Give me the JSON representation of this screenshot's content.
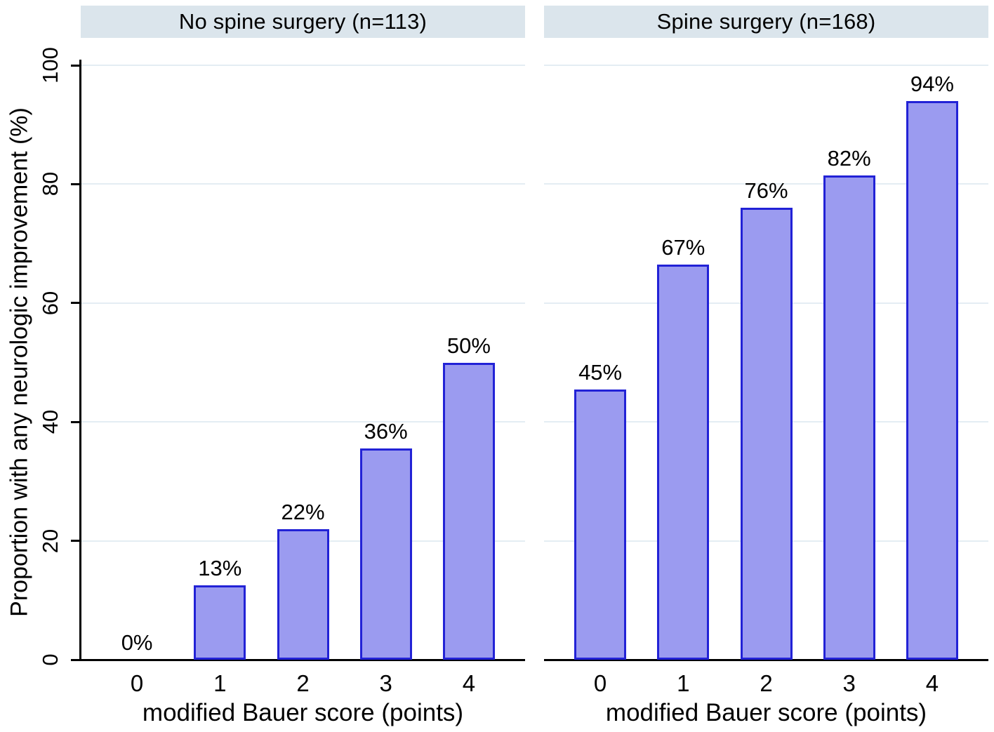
{
  "figure": {
    "background": "#ffffff"
  },
  "y_axis": {
    "title": "Proportion with any neurologic improvement (%)",
    "tick_values": [
      0,
      20,
      40,
      60,
      80,
      100
    ],
    "tick_labels": [
      "0",
      "20",
      "40",
      "60",
      "80",
      "100"
    ]
  },
  "chart_data": [
    {
      "type": "bar",
      "title": "No spine surgery (n=113)",
      "xlabel": "modified Bauer score (points)",
      "ylabel": "Proportion with any neurologic improvement (%)",
      "categories": [
        "0",
        "1",
        "2",
        "3",
        "4"
      ],
      "values": [
        0,
        13,
        22,
        36,
        50
      ],
      "value_labels": [
        "0%",
        "13%",
        "22%",
        "36%",
        "50%"
      ],
      "bar_heights_pct": [
        0,
        12.5,
        22,
        35.5,
        50
      ],
      "ylim": [
        0,
        100
      ],
      "grid": "horizontal",
      "legend": "none"
    },
    {
      "type": "bar",
      "title": "Spine surgery (n=168)",
      "xlabel": "modified Bauer score (points)",
      "ylabel": "Proportion with any neurologic improvement (%)",
      "categories": [
        "0",
        "1",
        "2",
        "3",
        "4"
      ],
      "values": [
        45,
        67,
        76,
        82,
        94
      ],
      "value_labels": [
        "45%",
        "67%",
        "76%",
        "82%",
        "94%"
      ],
      "bar_heights_pct": [
        45.5,
        66.5,
        76,
        81.5,
        94
      ],
      "ylim": [
        0,
        100
      ],
      "grid": "horizontal",
      "legend": "none"
    }
  ],
  "style": {
    "bar_fill": "#9b9bf0",
    "bar_border": "#2222d6",
    "header_bg": "#dbe5ec",
    "grid_color": "#e4edf3",
    "axis_color": "#000000",
    "text_color": "#000000"
  }
}
